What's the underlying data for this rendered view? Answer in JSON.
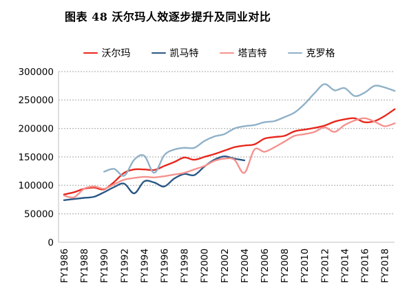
{
  "page": {
    "title": "图表 48 沃尔玛人效逐步提升及同业对比"
  },
  "chart_data": {
    "type": "line",
    "title": "图表 48 沃尔玛人效逐步提升及同业对比",
    "xlabel": "",
    "ylabel": "",
    "y_range": [
      0,
      300000
    ],
    "y_ticks": [
      0,
      50000,
      100000,
      150000,
      200000,
      250000,
      300000
    ],
    "y_tick_labels": [
      "0",
      "50000",
      "100000",
      "150000",
      "200000",
      "250000",
      "300000"
    ],
    "x_tick_labels": [
      "FY1986",
      "FY1988",
      "FY1990",
      "FY1992",
      "FY1994",
      "FY1996",
      "FY1998",
      "FY2000",
      "FY2002",
      "FY2004",
      "FY2006",
      "FY2008",
      "FY2010",
      "FY2012",
      "FY2014",
      "FY2016",
      "FY2018"
    ],
    "x_tick_years": [
      1986,
      1988,
      1990,
      1992,
      1994,
      1996,
      1998,
      2000,
      2002,
      2004,
      2006,
      2008,
      2010,
      2012,
      2014,
      2016,
      2018
    ],
    "grid": "horizontal-dashed",
    "legend_position": "top",
    "line_style": "smooth",
    "series": [
      {
        "name": "沃尔玛",
        "key": "walmart",
        "color": "#e8261b",
        "start_year": 1986,
        "end_year": 2019,
        "values": [
          84000,
          88000,
          94000,
          96000,
          93000,
          106000,
          122000,
          128000,
          128000,
          127000,
          134000,
          141000,
          149000,
          145000,
          150000,
          155000,
          161000,
          167000,
          170000,
          172000,
          182000,
          185000,
          187000,
          195000,
          198000,
          201000,
          205000,
          212000,
          216000,
          218000,
          211000,
          213000,
          222000,
          234000
        ]
      },
      {
        "name": "凯马特",
        "key": "kmart",
        "color": "#2a5784",
        "start_year": 1986,
        "end_year": 2004,
        "values": [
          74000,
          76000,
          78000,
          80000,
          88000,
          97000,
          103000,
          86000,
          107000,
          105000,
          98000,
          112000,
          120000,
          118000,
          133000,
          145000,
          151000,
          147000,
          144000
        ]
      },
      {
        "name": "塔吉特",
        "key": "target",
        "color": "#f4928e",
        "start_year": 1986,
        "end_year": 2019,
        "values": [
          82000,
          79000,
          94000,
          98000,
          94000,
          102000,
          110000,
          113000,
          115000,
          114000,
          116000,
          119000,
          122000,
          128000,
          134000,
          143000,
          147000,
          145000,
          122000,
          163000,
          159000,
          167000,
          177000,
          187000,
          190000,
          194000,
          202000,
          194000,
          206000,
          214000,
          218000,
          212000,
          204000,
          209000
        ]
      },
      {
        "name": "克罗格",
        "key": "kroger",
        "color": "#8fb1c8",
        "start_year": 1990,
        "end_year": 2019,
        "values": [
          124000,
          129000,
          117000,
          145000,
          152000,
          122000,
          153000,
          163000,
          166000,
          166000,
          178000,
          186000,
          190000,
          200000,
          204000,
          206000,
          211000,
          213000,
          220000,
          228000,
          243000,
          262000,
          278000,
          267000,
          271000,
          257000,
          263000,
          275000,
          272000,
          266000
        ]
      }
    ],
    "colors": {
      "grid": "#a6a6a6",
      "axis": "#bfbfbf",
      "text": "#000000",
      "background": "#ffffff"
    }
  }
}
